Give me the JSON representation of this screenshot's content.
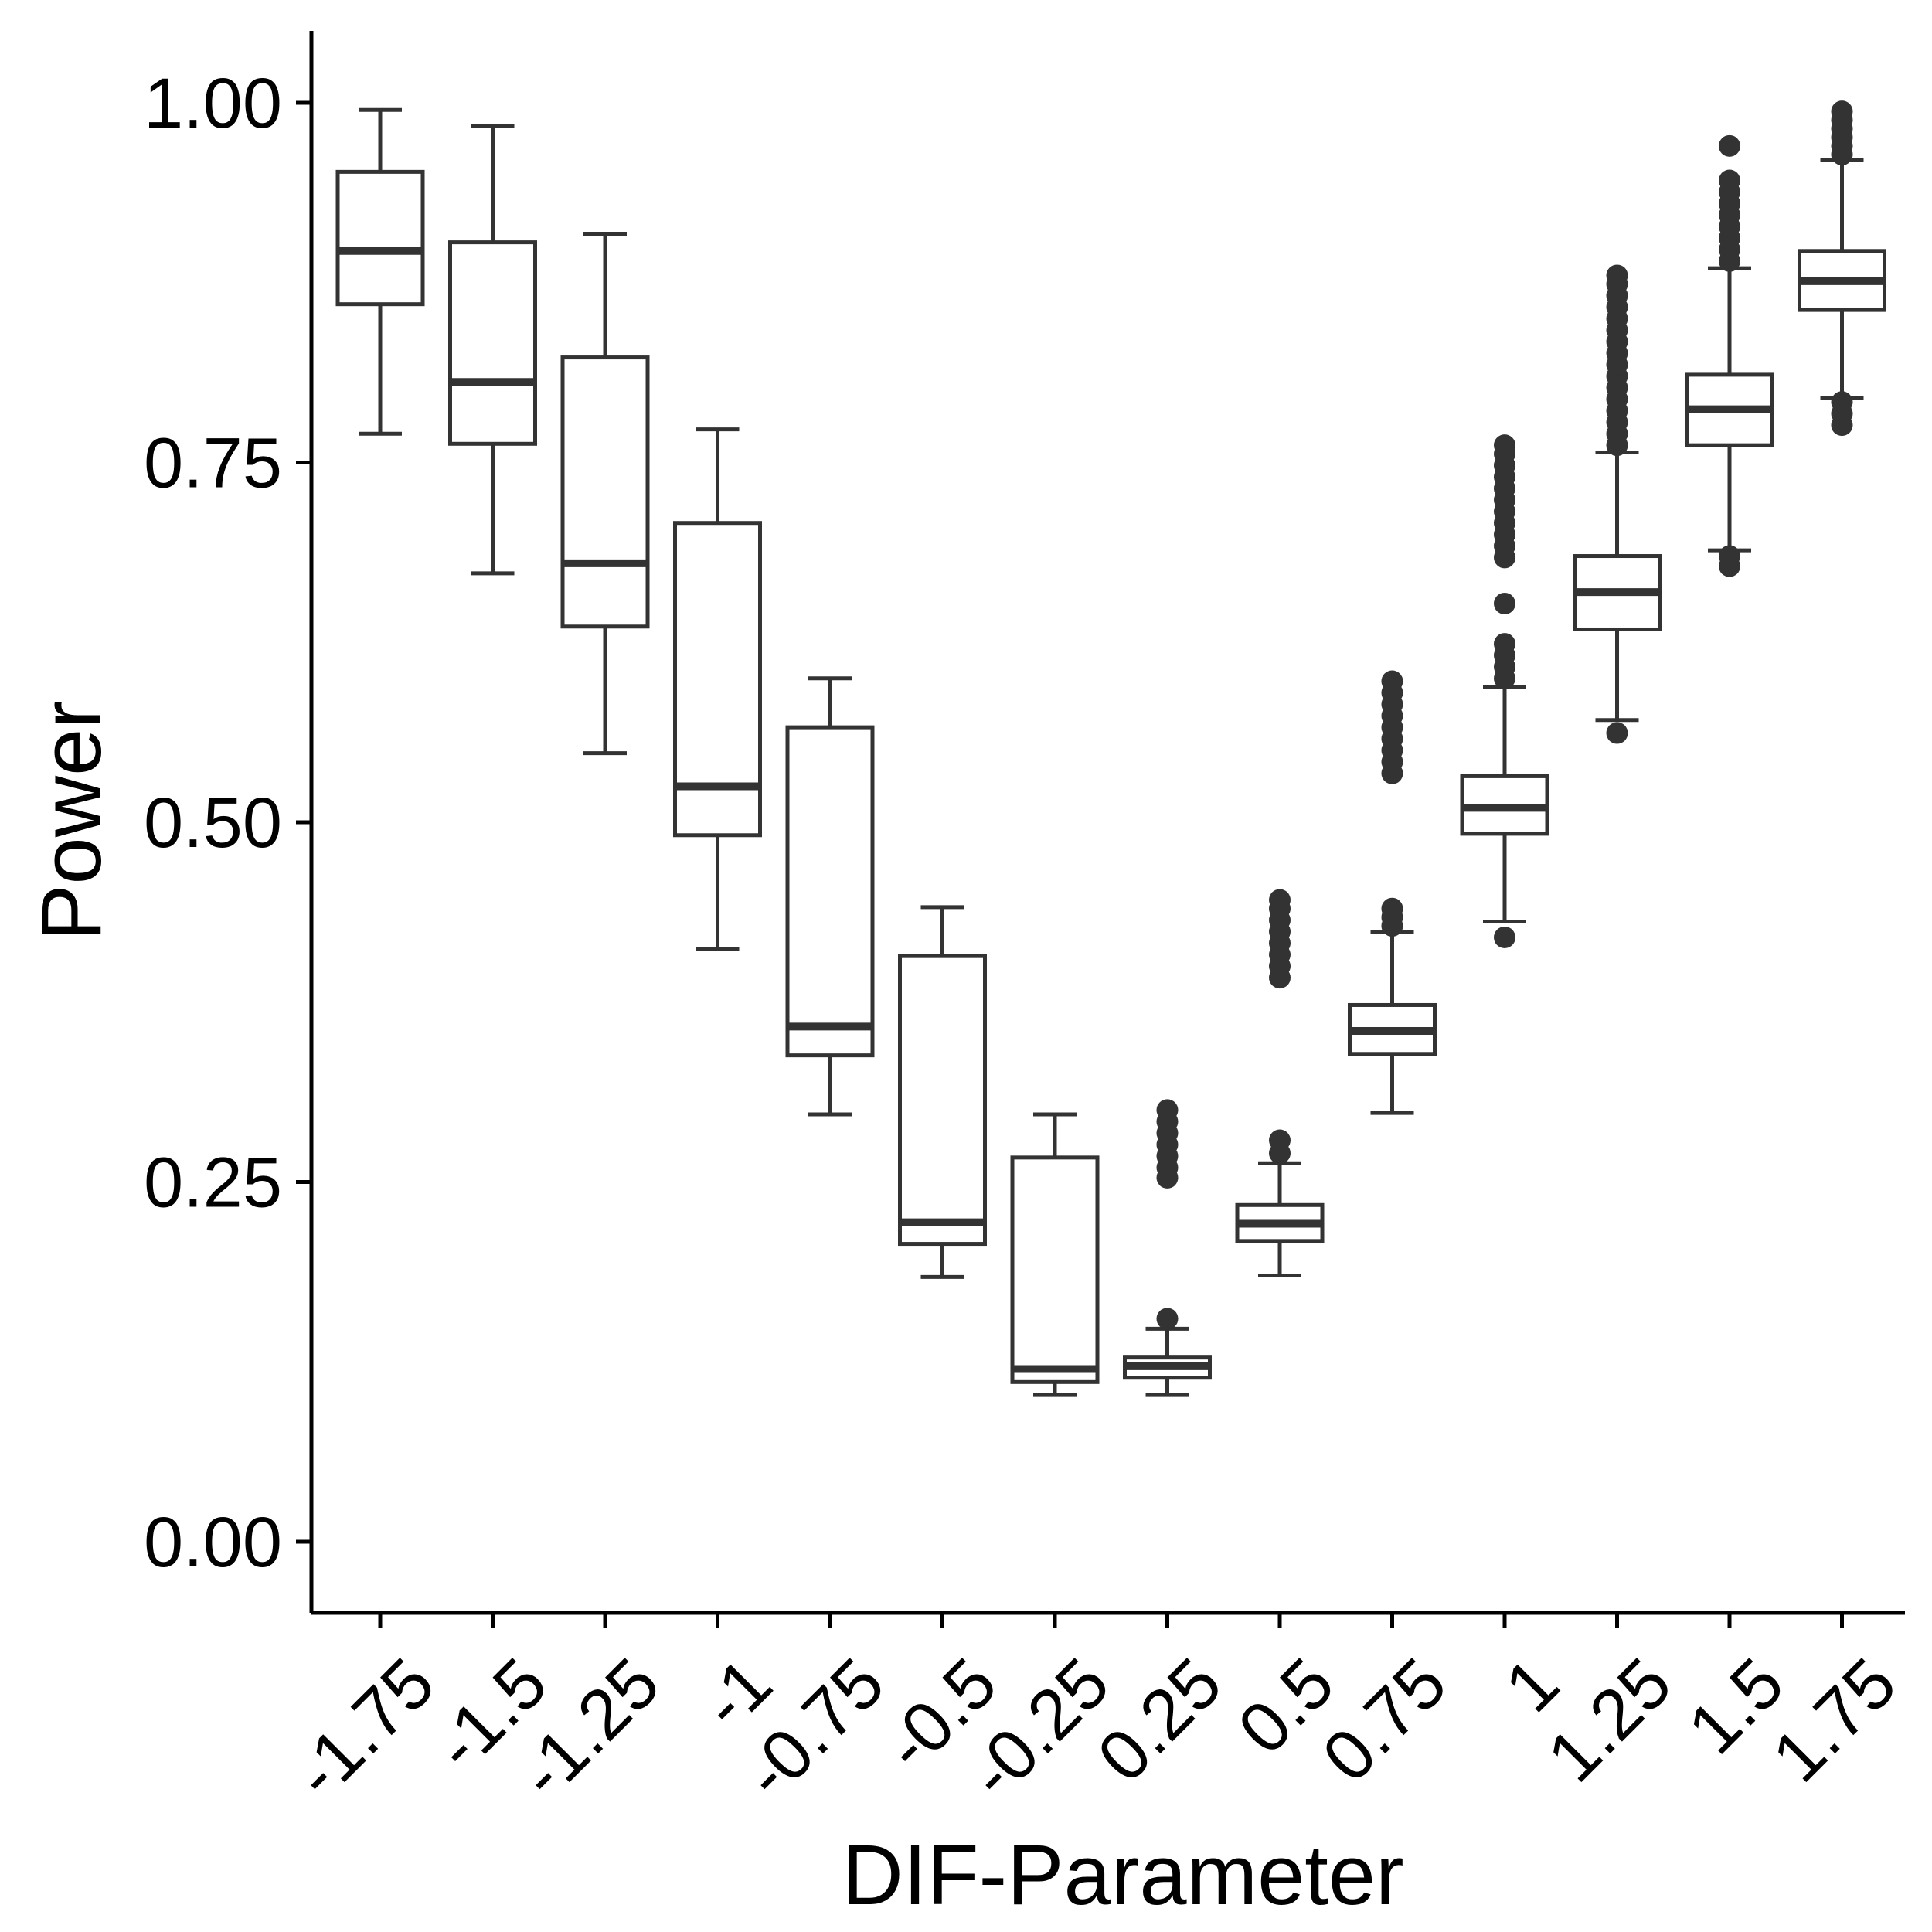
{
  "chart_data": {
    "type": "boxplot",
    "title": "",
    "xlabel": "DIF-Parameter",
    "ylabel": "Power",
    "ylim": [
      -0.05,
      1.05
    ],
    "y_ticks": [
      0.0,
      0.25,
      0.5,
      0.75,
      1.0
    ],
    "y_tick_labels": [
      "0.00",
      "0.25",
      "0.50",
      "0.75",
      "1.00"
    ],
    "grid": false,
    "legend": "none",
    "colors": {
      "box_stroke": "#333333",
      "box_fill": "#ffffff",
      "outlier": "#333333",
      "axis": "#000000"
    },
    "categories": [
      "-1.75",
      "-1.5",
      "-1.25",
      "-1",
      "-0.75",
      "-0.5",
      "-0.25",
      "0.25",
      "0.5",
      "0.75",
      "1",
      "1.25",
      "1.5",
      "1.75"
    ],
    "boxes": [
      {
        "min": 0.77,
        "q1": 0.86,
        "median": 0.897,
        "q3": 0.952,
        "max": 0.995,
        "outliers": []
      },
      {
        "min": 0.673,
        "q1": 0.763,
        "median": 0.806,
        "q3": 0.903,
        "max": 0.984,
        "outliers": []
      },
      {
        "min": 0.548,
        "q1": 0.636,
        "median": 0.68,
        "q3": 0.823,
        "max": 0.909,
        "outliers": []
      },
      {
        "min": 0.412,
        "q1": 0.491,
        "median": 0.525,
        "q3": 0.708,
        "max": 0.773,
        "outliers": []
      },
      {
        "min": 0.297,
        "q1": 0.338,
        "median": 0.358,
        "q3": 0.566,
        "max": 0.6,
        "outliers": []
      },
      {
        "min": 0.184,
        "q1": 0.207,
        "median": 0.222,
        "q3": 0.407,
        "max": 0.441,
        "outliers": []
      },
      {
        "min": 0.102,
        "q1": 0.111,
        "median": 0.12,
        "q3": 0.267,
        "max": 0.297,
        "outliers": []
      },
      {
        "min": 0.102,
        "q1": 0.114,
        "median": 0.122,
        "q3": 0.128,
        "max": 0.148,
        "outliers": [
          0.155,
          0.253,
          0.26,
          0.268,
          0.276,
          0.284,
          0.292,
          0.3
        ]
      },
      {
        "min": 0.185,
        "q1": 0.209,
        "median": 0.221,
        "q3": 0.234,
        "max": 0.263,
        "outliers": [
          0.27,
          0.279,
          0.392,
          0.4,
          0.408,
          0.416,
          0.424,
          0.432,
          0.44,
          0.446
        ]
      },
      {
        "min": 0.298,
        "q1": 0.339,
        "median": 0.355,
        "q3": 0.373,
        "max": 0.424,
        "outliers": [
          0.428,
          0.434,
          0.44,
          0.534,
          0.542,
          0.55,
          0.558,
          0.566,
          0.574,
          0.582,
          0.59,
          0.598
        ]
      },
      {
        "min": 0.431,
        "q1": 0.492,
        "median": 0.51,
        "q3": 0.532,
        "max": 0.594,
        "outliers": [
          0.42,
          0.6,
          0.608,
          0.616,
          0.624,
          0.652,
          0.684,
          0.692,
          0.7,
          0.708,
          0.716,
          0.724,
          0.732,
          0.74,
          0.748,
          0.756,
          0.762
        ]
      },
      {
        "min": 0.571,
        "q1": 0.634,
        "median": 0.66,
        "q3": 0.685,
        "max": 0.757,
        "outliers": [
          0.562,
          0.762,
          0.77,
          0.778,
          0.786,
          0.794,
          0.802,
          0.81,
          0.818,
          0.826,
          0.834,
          0.842,
          0.85,
          0.858,
          0.866,
          0.874,
          0.88
        ]
      },
      {
        "min": 0.689,
        "q1": 0.762,
        "median": 0.787,
        "q3": 0.811,
        "max": 0.885,
        "outliers": [
          0.678,
          0.685,
          0.89,
          0.898,
          0.906,
          0.914,
          0.922,
          0.93,
          0.938,
          0.946,
          0.97
        ]
      },
      {
        "min": 0.795,
        "q1": 0.856,
        "median": 0.876,
        "q3": 0.897,
        "max": 0.96,
        "outliers": [
          0.776,
          0.784,
          0.792,
          0.964,
          0.97,
          0.976,
          0.982,
          0.988,
          0.994
        ]
      }
    ]
  }
}
